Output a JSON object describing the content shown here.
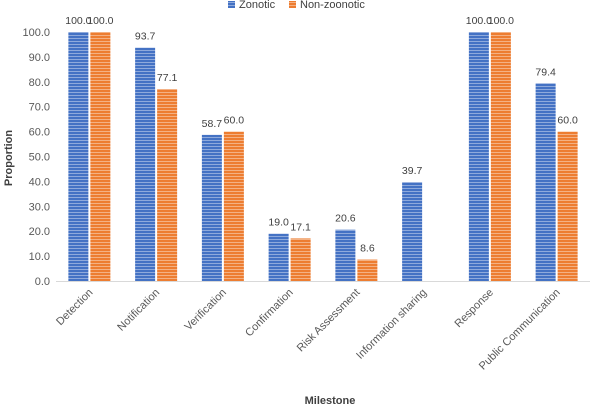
{
  "chart_data": {
    "type": "bar",
    "title": "",
    "xlabel": "Milestone",
    "ylabel": "Proportion",
    "ylim": [
      0,
      100
    ],
    "ytick_step": 10,
    "ytick_labels": [
      "0.0",
      "10.0",
      "20.0",
      "30.0",
      "40.0",
      "50.0",
      "60.0",
      "70.0",
      "80.0",
      "90.0",
      "100.0"
    ],
    "categories": [
      "Detection",
      "Notification",
      "Verification",
      "Confirmation",
      "Risk Assessment",
      "Information sharing",
      "Response",
      "Public Communication"
    ],
    "series": [
      {
        "name": "Zonotic",
        "color": "#4472C4",
        "values": [
          100.0,
          93.7,
          58.7,
          19.0,
          20.6,
          39.7,
          100.0,
          79.4
        ],
        "labels": [
          "100.0",
          "93.7",
          "58.7",
          "19.0",
          "20.6",
          "39.7",
          "100.0",
          "79.4"
        ]
      },
      {
        "name": "Non-zoonotic",
        "color": "#ED7D31",
        "values": [
          100.0,
          77.1,
          60.0,
          17.1,
          8.6,
          null,
          100.0,
          60.0
        ],
        "labels": [
          "100.0",
          "77.1",
          "60.0",
          "17.1",
          "8.6",
          null,
          "100.0",
          "60.0"
        ]
      }
    ],
    "legend_position": "top-center",
    "grid": false
  }
}
